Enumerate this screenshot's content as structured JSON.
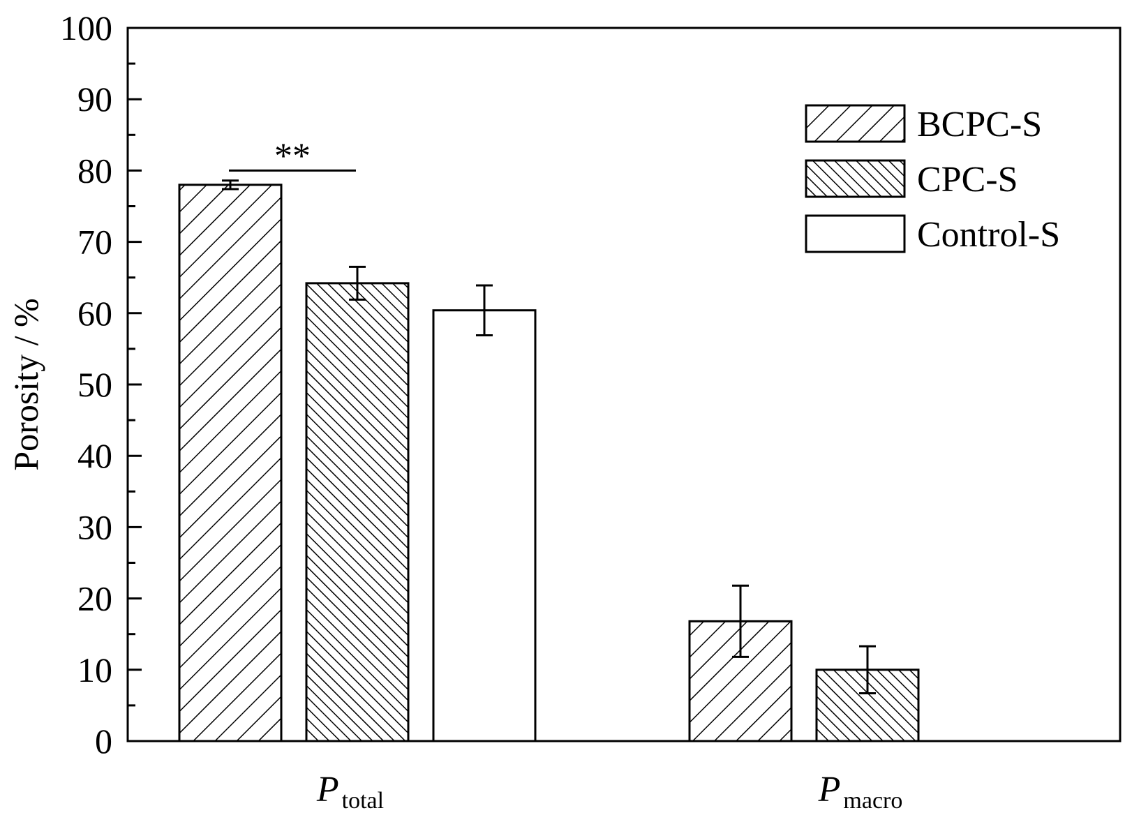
{
  "chart_data": {
    "type": "bar",
    "ylabel": "Porosity / %",
    "ylim": [
      0,
      100
    ],
    "yticks": [
      0,
      10,
      20,
      30,
      40,
      50,
      60,
      70,
      80,
      90,
      100
    ],
    "categories": [
      {
        "main": "P",
        "sub": "total"
      },
      {
        "main": "P",
        "sub": "macro"
      }
    ],
    "series": [
      {
        "name": "BCPC-S",
        "pattern": "hatch-forward",
        "values": [
          78.0,
          16.8
        ],
        "errors": [
          0.6,
          5.0
        ]
      },
      {
        "name": "CPC-S",
        "pattern": "hatch-back-dense",
        "values": [
          64.2,
          10.0
        ],
        "errors": [
          2.3,
          3.3
        ]
      },
      {
        "name": "Control-S",
        "pattern": "none",
        "values": [
          60.4,
          null
        ],
        "errors": [
          3.5,
          null
        ]
      }
    ],
    "annotations": [
      {
        "text": "**",
        "category_index": 0,
        "between_series": [
          0,
          1
        ],
        "y": 80.2
      }
    ],
    "legend_position": "top-right",
    "grid": false,
    "colors": {
      "stroke": "#000000",
      "fill": "#ffffff"
    }
  }
}
